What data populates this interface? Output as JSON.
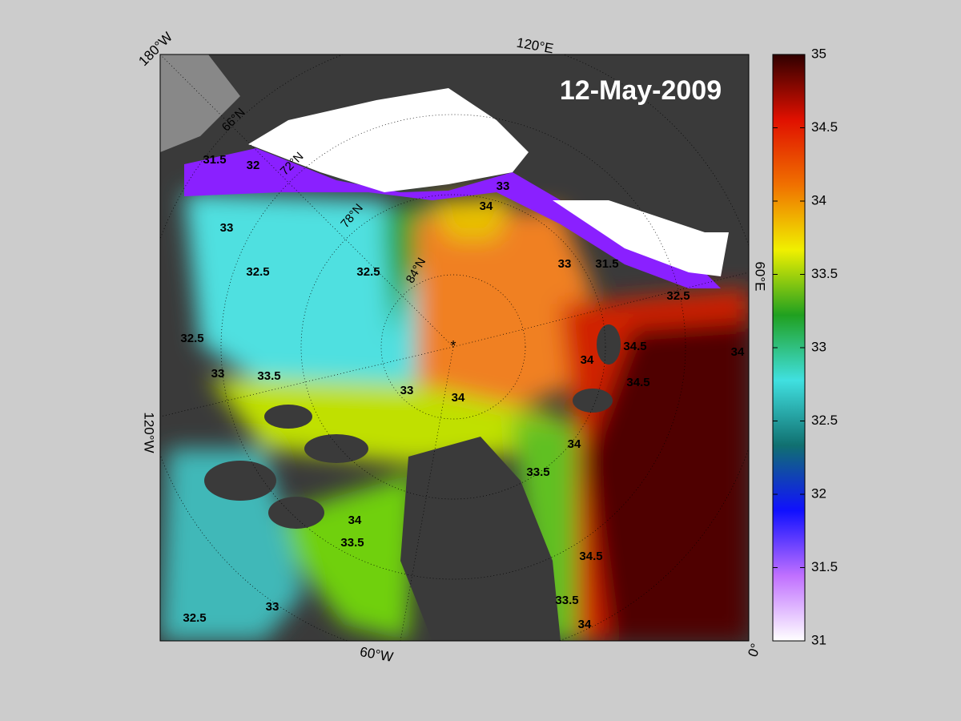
{
  "map": {
    "title": "12-May-2009",
    "lon_labels": [
      "180°W",
      "120°E",
      "60°E",
      "0°",
      "60°W",
      "120°W"
    ],
    "lat_labels": [
      "66°N",
      "72°N",
      "78°N",
      "84°N"
    ],
    "contour_labels": [
      31.5,
      32,
      33,
      32.5,
      32.5,
      34,
      33,
      32.5,
      33,
      33.5,
      33,
      34,
      34,
      34.5,
      34.5,
      34,
      32.5,
      31.5,
      33,
      34,
      33.5,
      34,
      33.5,
      33,
      32.5,
      34.5,
      34,
      33.5
    ],
    "colorbar": {
      "range": [
        31,
        35
      ],
      "ticks": [
        31,
        31.5,
        32,
        32.5,
        33,
        33.5,
        34,
        34.5,
        35
      ],
      "colors": [
        "#ffffff",
        "#c070ff",
        "#1010ff",
        "#107070",
        "#40e0e0",
        "#20a020",
        "#f0f000",
        "#f07000",
        "#e01000",
        "#300000"
      ]
    }
  }
}
